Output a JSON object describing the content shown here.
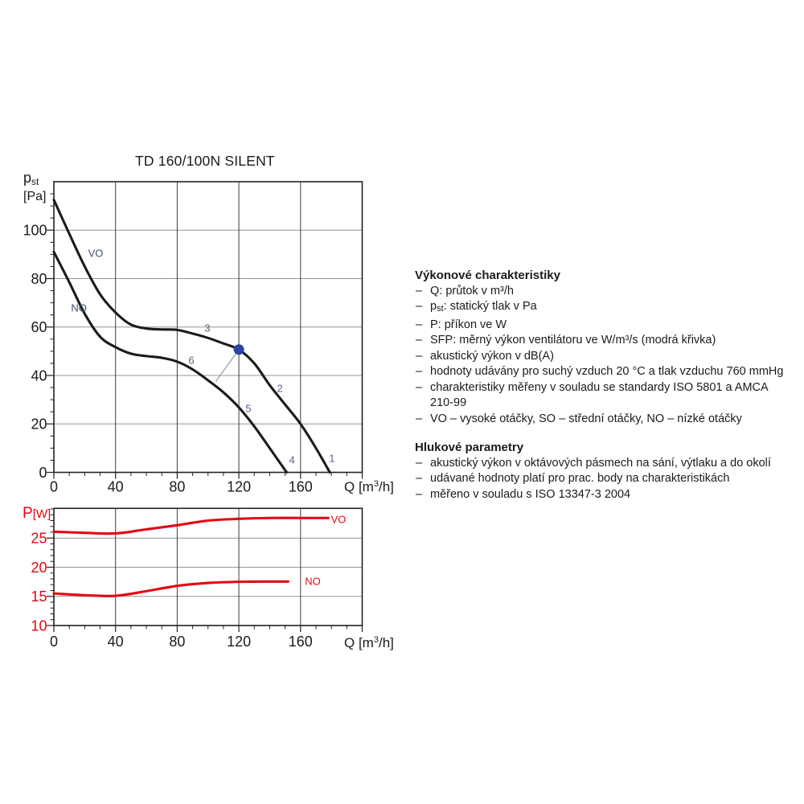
{
  "page": {
    "title": "TD 160/100N SILENT"
  },
  "colors": {
    "black": "#1b1b1b",
    "red": "#e30613",
    "blue": "#2b43a7",
    "grid_gray": "#949494",
    "grid_dark": "#3c3c3c",
    "frame": "#222222",
    "leader_gray": "#9a9a9a",
    "slate": "#3f4e72",
    "slate_light": "#55648c"
  },
  "axis_labels": {
    "pst": {
      "main": "p",
      "sub": "st",
      "unit": "[Pa]"
    },
    "p": {
      "main": "P",
      "unit": "[W]"
    },
    "q": {
      "main": "Q [m",
      "sup": "3",
      "rest": "/h]"
    }
  },
  "chart_data": [
    {
      "type": "line",
      "title": "TD 160/100N SILENT",
      "xlabel": "Q [m³/h]",
      "ylabel": "pst [Pa]",
      "xlim": [
        0,
        200
      ],
      "ylim": [
        0,
        120
      ],
      "x_ticks": [
        0,
        40,
        80,
        120,
        160
      ],
      "y_ticks": [
        0,
        20,
        40,
        60,
        80,
        100
      ],
      "x_grid": [
        40,
        80,
        120,
        160
      ],
      "y_grid": [
        20,
        40,
        60,
        80,
        100
      ],
      "x_minor_step": 10,
      "y_minor_step": 5,
      "tick_color": "black",
      "series": [
        {
          "name": "VO",
          "color": "black",
          "points": [
            [
              0,
              112.5
            ],
            [
              10,
              98.5
            ],
            [
              20,
              85
            ],
            [
              30,
              73.5
            ],
            [
              40,
              66
            ],
            [
              50,
              61
            ],
            [
              60,
              59.4
            ],
            [
              70,
              59
            ],
            [
              80,
              58.8
            ],
            [
              90,
              57.3
            ],
            [
              100,
              55.5
            ],
            [
              110,
              53.2
            ],
            [
              120,
              50.7
            ],
            [
              130,
              45
            ],
            [
              140,
              36
            ],
            [
              150,
              28
            ],
            [
              160,
              20
            ],
            [
              170,
              10
            ],
            [
              179,
              0
            ]
          ]
        },
        {
          "name": "NO",
          "color": "black",
          "points": [
            [
              0,
              91
            ],
            [
              10,
              78.5
            ],
            [
              20,
              65.5
            ],
            [
              30,
              56
            ],
            [
              40,
              51.7
            ],
            [
              50,
              49
            ],
            [
              60,
              48
            ],
            [
              70,
              47.3
            ],
            [
              80,
              45.7
            ],
            [
              90,
              42.5
            ],
            [
              100,
              38
            ],
            [
              110,
              33
            ],
            [
              120,
              26.8
            ],
            [
              130,
              19
            ],
            [
              140,
              10
            ],
            [
              151,
              0
            ]
          ]
        }
      ],
      "series_labels": [
        {
          "text": "VO",
          "q": 27.1,
          "v": 89.0,
          "color": "slate"
        },
        {
          "text": "NO",
          "q": 16.2,
          "v": 66.4,
          "color": "slate"
        }
      ],
      "point_labels": [
        {
          "text": "1",
          "q": 180.4,
          "v": 4.3
        },
        {
          "text": "2",
          "q": 146.6,
          "v": 33.2
        },
        {
          "text": "3",
          "q": 99.6,
          "v": 58.1
        },
        {
          "text": "4",
          "q": 154.4,
          "v": 3.6
        },
        {
          "text": "5",
          "q": 126.2,
          "v": 24.9
        },
        {
          "text": "6",
          "q": 89.2,
          "v": 44.8
        }
      ],
      "sfp_marker": {
        "q": 120,
        "v": 50.7,
        "leader_end": {
          "q": 105,
          "v": 37.5
        }
      }
    },
    {
      "type": "line",
      "title": "",
      "xlabel": "Q [m³/h]",
      "ylabel": "P [W]",
      "xlim": [
        0,
        200
      ],
      "ylim": [
        10,
        30.1
      ],
      "x_ticks": [
        0,
        40,
        80,
        120,
        160
      ],
      "y_ticks": [
        10,
        15,
        20,
        25
      ],
      "x_grid": [
        40,
        80,
        120,
        160
      ],
      "y_grid": [
        15,
        20,
        25
      ],
      "x_minor_step": 10,
      "y_minor_step": 1,
      "tick_color": "red",
      "series": [
        {
          "name": "VO",
          "color": "red",
          "points": [
            [
              0,
              26.1
            ],
            [
              20,
              25.9
            ],
            [
              40,
              25.8
            ],
            [
              60,
              26.5
            ],
            [
              80,
              27.2
            ],
            [
              100,
              28.0
            ],
            [
              120,
              28.3
            ],
            [
              140,
              28.45
            ],
            [
              160,
              28.45
            ],
            [
              178,
              28.45
            ]
          ]
        },
        {
          "name": "NO",
          "color": "red",
          "points": [
            [
              0,
              15.5
            ],
            [
              20,
              15.2
            ],
            [
              40,
              15.1
            ],
            [
              60,
              15.9
            ],
            [
              80,
              16.8
            ],
            [
              100,
              17.3
            ],
            [
              120,
              17.5
            ],
            [
              140,
              17.55
            ],
            [
              152,
              17.55
            ]
          ]
        }
      ],
      "series_labels": [
        {
          "text": "VO",
          "q": 184.6,
          "v": 27.6,
          "color": "red"
        },
        {
          "text": "NO",
          "q": 167.9,
          "v": 17.0,
          "color": "red"
        }
      ],
      "point_labels": []
    }
  ],
  "info": {
    "bullet": "–",
    "sections": [
      {
        "heading": "Výkonové charakteristiky",
        "items": [
          {
            "text": "Q: průtok v m³/h"
          },
          {
            "parts": [
              {
                "t": "p"
              },
              {
                "t": "st",
                "sub": true
              },
              {
                "t": ": statický tlak v Pa"
              }
            ]
          },
          {
            "text": "P: příkon ve W"
          },
          {
            "text": "SFP: měrný výkon ventilátoru ve W/m³/s (modrá křivka)"
          },
          {
            "text": "akustický výkon v dB(A)"
          },
          {
            "text": "hodnoty udávány pro suchý vzduch 20 °C a tlak vzduchu 760 mmHg"
          },
          {
            "lines": [
              "charakteristiky měřeny v souladu se standardy ISO 5801 a AMCA",
              "210-99"
            ]
          },
          {
            "text": "VO – vysoké otáčky, SO – střední otáčky, NO – nízké otáčky"
          }
        ]
      },
      {
        "heading": "Hlukové parametry",
        "items": [
          {
            "text": "akustický výkon v oktávových pásmech na sání, výtlaku a do okolí"
          },
          {
            "text": "udávané hodnoty platí pro prac. body na charakteristikách"
          },
          {
            "text": "měřeno v souladu s ISO 13347-3 2004"
          }
        ]
      }
    ]
  }
}
